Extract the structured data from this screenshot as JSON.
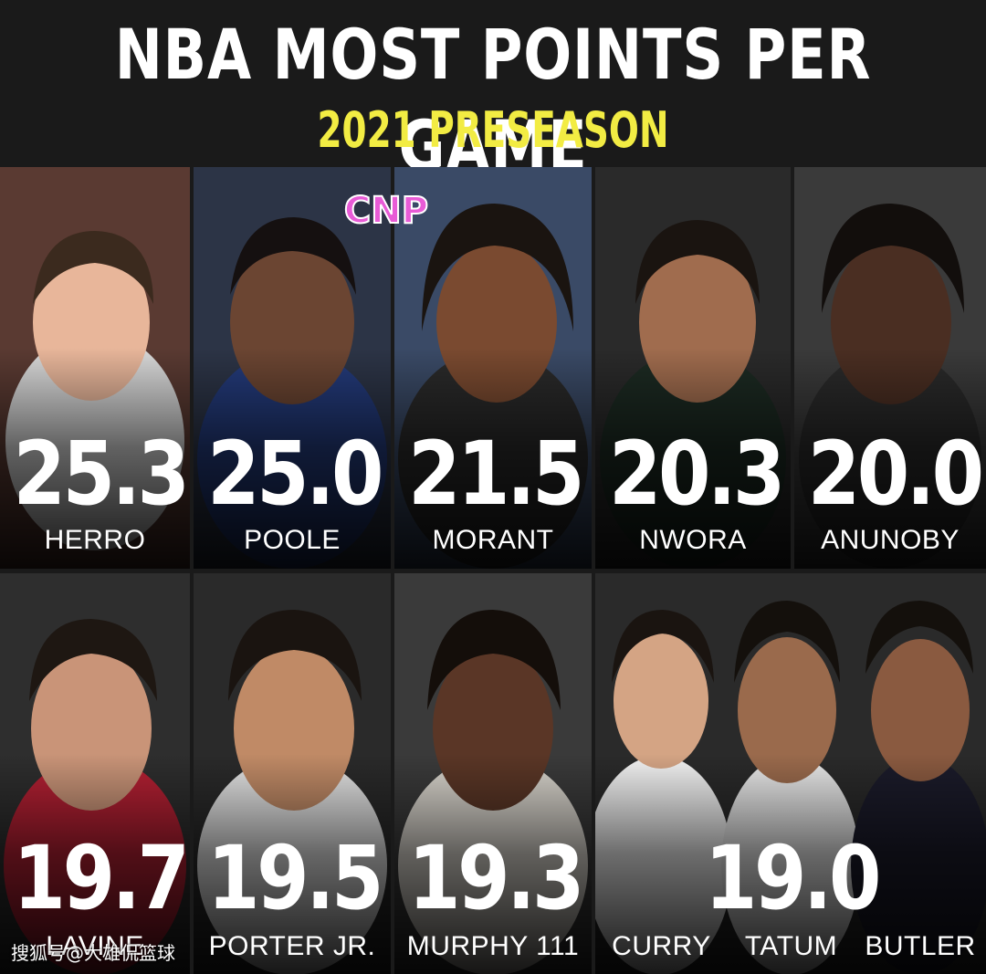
{
  "header": {
    "title": "NBA MOST POINTS PER GAME",
    "subtitle": "2021 PRESEASON"
  },
  "logo_text": "CNP",
  "players_row1": [
    {
      "name": "HERRO",
      "ppg": "25.3"
    },
    {
      "name": "POOLE",
      "ppg": "25.0"
    },
    {
      "name": "MORANT",
      "ppg": "21.5"
    },
    {
      "name": "NWORA",
      "ppg": "20.3"
    },
    {
      "name": "ANUNOBY",
      "ppg": "20.0"
    }
  ],
  "players_row2": [
    {
      "name": "LAVINE",
      "ppg": "19.7"
    },
    {
      "name": "PORTER JR.",
      "ppg": "19.5"
    },
    {
      "name": "MURPHY 111",
      "ppg": "19.3"
    }
  ],
  "tie_group": {
    "ppg": "19.0",
    "names": [
      "CURRY",
      "TATUM",
      "BUTLER"
    ]
  },
  "watermark": "搜狐号@大雄侃篮球",
  "colors": {
    "background": "#1a1a1a",
    "title": "#ffffff",
    "subtitle": "#f2ec43",
    "logo": "#e85bd6"
  }
}
